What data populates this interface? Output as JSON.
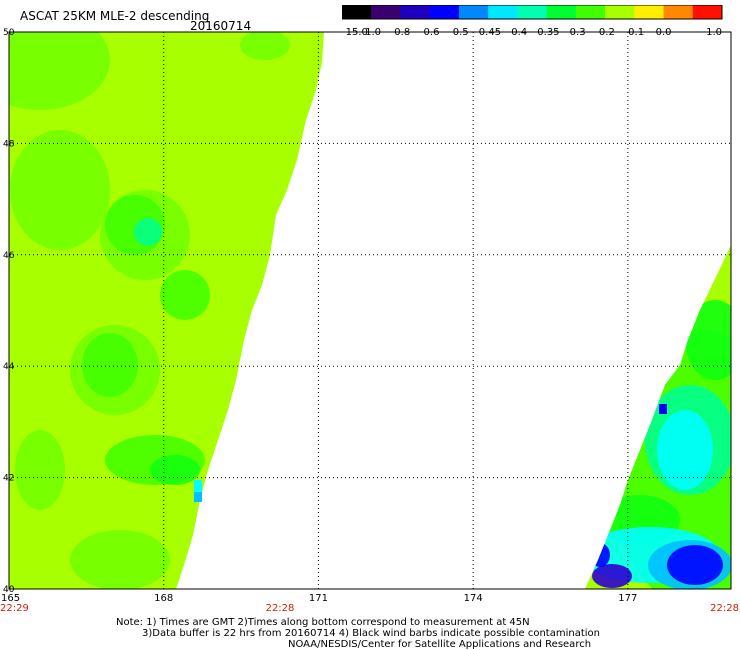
{
  "header": {
    "title": "ASCAT 25KM MLE-2 descending",
    "date": "20160714"
  },
  "colorbar": {
    "labels": [
      "-15.0",
      "-1.0",
      "-0.8",
      "-0.6",
      "-0.5",
      "-0.45",
      "-0.4",
      "-0.35",
      "-0.3",
      "-0.2",
      "-0.1",
      "0.0",
      "1.0"
    ],
    "colors": [
      "#000000",
      "#3a0070",
      "#2000c0",
      "#0000ff",
      "#0088ff",
      "#00e8ff",
      "#00ffb0",
      "#00ff30",
      "#40ff00",
      "#a8ff00",
      "#ffee00",
      "#ff8800",
      "#ff1000"
    ]
  },
  "map": {
    "lat_labels": [
      "50",
      "48",
      "46",
      "44",
      "42",
      "40"
    ],
    "lon_labels": [
      "165",
      "168",
      "171",
      "174",
      "177"
    ],
    "times": {
      "left": "22:29",
      "mid": "22:28",
      "right": "22:28"
    },
    "swath_colors": {
      "background": "#a8ff00",
      "green_light": "#70ff00",
      "green": "#40ff00",
      "green_strong": "#10ff10",
      "teal": "#00ff90",
      "cyan": "#00ffff",
      "light_blue": "#00c0ff",
      "blue": "#0070ff",
      "deep_blue": "#0000ff",
      "violet": "#3000d0"
    }
  },
  "notes": {
    "line1": "Note: 1) Times are GMT 2)Times along bottom correspond to measurement at 45N",
    "line2": "3)Data buffer is 22 hrs from 20160714 4) Black wind barbs indicate possible contamination",
    "line3": "NOAA/NESDIS/Center for Satellite Applications and Research"
  }
}
